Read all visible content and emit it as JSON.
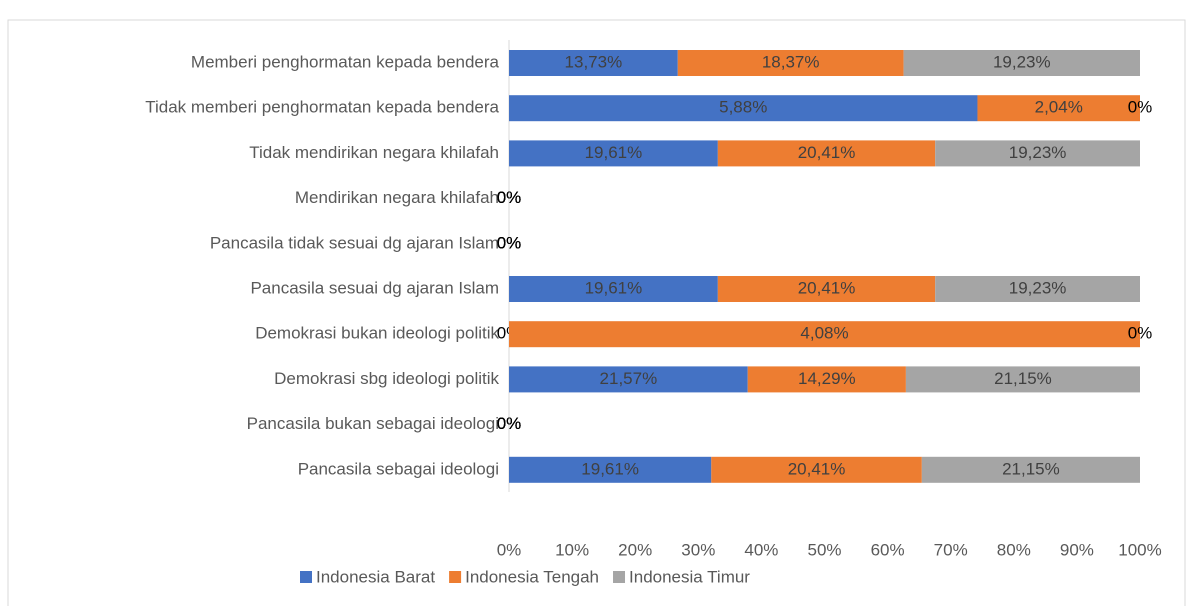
{
  "chart_data": {
    "type": "bar_percent_stacked_horizontal",
    "categories": [
      "Memberi penghormatan kepada bendera",
      "Tidak memberi penghormatan kepada bendera",
      "Tidak mendirikan negara khilafah",
      "Mendirikan negara khilafah",
      "Pancasila tidak sesuai dg ajaran Islam",
      "Pancasila sesuai dg ajaran Islam",
      "Demokrasi bukan ideologi politik",
      "Demokrasi sbg ideologi politik",
      "Pancasila bukan sebagai ideologi",
      "Pancasila sebagai ideologi"
    ],
    "series": [
      {
        "name": "Indonesia Barat",
        "color": "#4472c4",
        "values": [
          13.73,
          5.88,
          19.61,
          0,
          0,
          19.61,
          0,
          21.57,
          0,
          19.61
        ],
        "value_labels": [
          "13,73%",
          "5,88%",
          "19,61%",
          "0%",
          "0%",
          "19,61%",
          "0%",
          "21,57%",
          "0%",
          "19,61%"
        ]
      },
      {
        "name": "Indonesia Tengah",
        "color": "#ed7d31",
        "values": [
          18.37,
          2.04,
          20.41,
          0,
          0,
          20.41,
          4.08,
          14.29,
          0,
          20.41
        ],
        "value_labels": [
          "18,37%",
          "2,04%",
          "20,41%",
          "0%",
          "0%",
          "20,41%",
          "4,08%",
          "14,29%",
          "0%",
          "20,41%"
        ]
      },
      {
        "name": "Indonesia Timur",
        "color": "#a5a5a5",
        "values": [
          19.23,
          0,
          19.23,
          0,
          0,
          19.23,
          0,
          21.15,
          0,
          21.15
        ],
        "value_labels": [
          "19,23%",
          "0%",
          "19,23%",
          "0%",
          "0%",
          "19,23%",
          "0%",
          "21,15%",
          "0%",
          "21,15%"
        ]
      }
    ],
    "xlim": [
      0,
      100
    ],
    "xticks": [
      {
        "value": 0,
        "label": "0%"
      },
      {
        "value": 10,
        "label": "10%"
      },
      {
        "value": 20,
        "label": "20%"
      },
      {
        "value": 30,
        "label": "30%"
      },
      {
        "value": 40,
        "label": "40%"
      },
      {
        "value": 50,
        "label": "50%"
      },
      {
        "value": 60,
        "label": "60%"
      },
      {
        "value": 70,
        "label": "70%"
      },
      {
        "value": 80,
        "label": "80%"
      },
      {
        "value": 90,
        "label": "90%"
      },
      {
        "value": 100,
        "label": "100%"
      }
    ],
    "legend": "bottom"
  }
}
